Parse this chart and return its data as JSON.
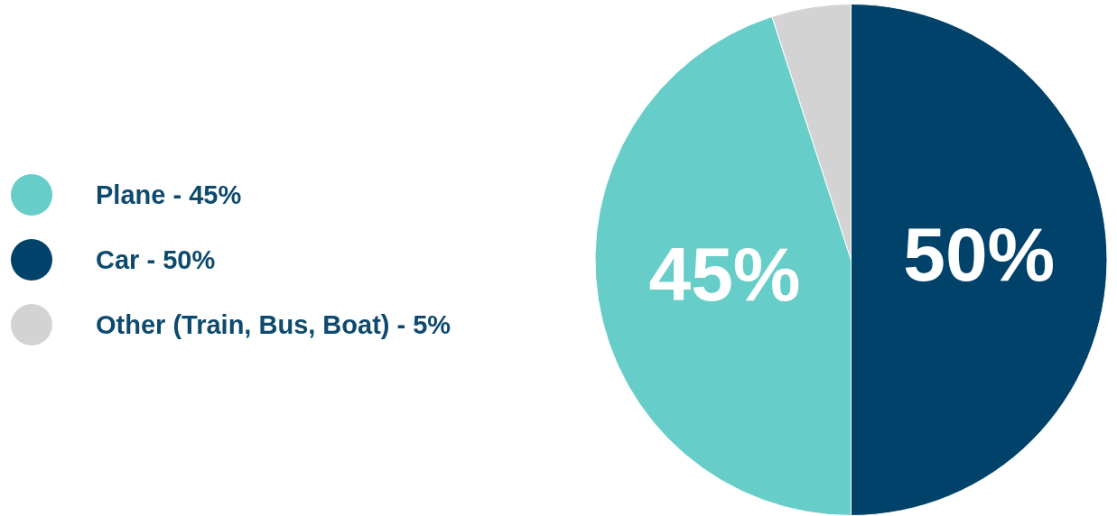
{
  "chart_data": {
    "type": "pie",
    "categories": [
      "Plane - 45%",
      "Car - 50%",
      "Other (Train, Bus, Boat) - 5%"
    ],
    "values": [
      45,
      50,
      5
    ],
    "colors": [
      "#66cdc9",
      "#00426a",
      "#d3d3d3"
    ],
    "value_labels": [
      "45%",
      "50%",
      null
    ],
    "legend": "left"
  }
}
